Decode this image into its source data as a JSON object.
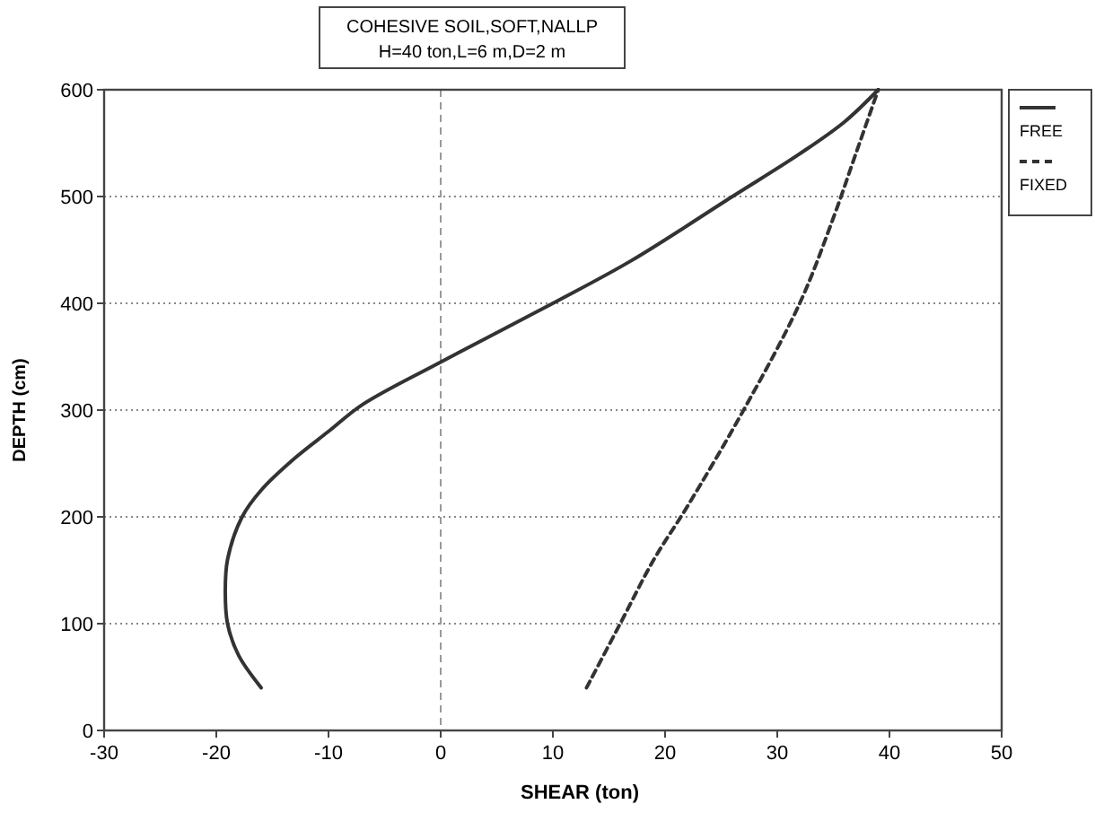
{
  "chart_data": {
    "type": "line",
    "title": "COHESIVE  SOIL,SOFT,NALLP",
    "subtitle": "H=40 ton,L=6 m,D=2 m",
    "xlabel": "SHEAR (ton)",
    "ylabel": "DEPTH (cm)",
    "xlim": [
      -30,
      50
    ],
    "xticks": [
      -30,
      -20,
      -10,
      0,
      10,
      20,
      30,
      40,
      50
    ],
    "ylim": [
      0,
      600
    ],
    "yticks": [
      0,
      100,
      200,
      300,
      400,
      500,
      600
    ],
    "grid": "y",
    "legend": "right",
    "ref_lines": [
      {
        "axis": "x",
        "value": 0,
        "line_style": "dashed",
        "color": "#999999"
      }
    ],
    "series": [
      {
        "name": "FREE",
        "color": "#333333",
        "line_style": "solid",
        "x": [
          -16,
          -18,
          -19,
          -19.2,
          -19,
          -17.7,
          -16,
          -13,
          -10,
          -7,
          0,
          10,
          17,
          26,
          32,
          36,
          39
        ],
        "values": [
          40,
          70,
          100,
          130,
          160,
          200,
          225,
          255,
          280,
          305,
          345,
          400,
          440,
          500,
          540,
          570,
          600
        ]
      },
      {
        "name": "FIXED",
        "color": "#333333",
        "line_style": "dashed",
        "x": [
          13,
          16,
          19,
          22,
          27,
          32,
          35,
          37,
          39
        ],
        "values": [
          40,
          100,
          160,
          210,
          300,
          400,
          480,
          540,
          600
        ]
      }
    ]
  }
}
